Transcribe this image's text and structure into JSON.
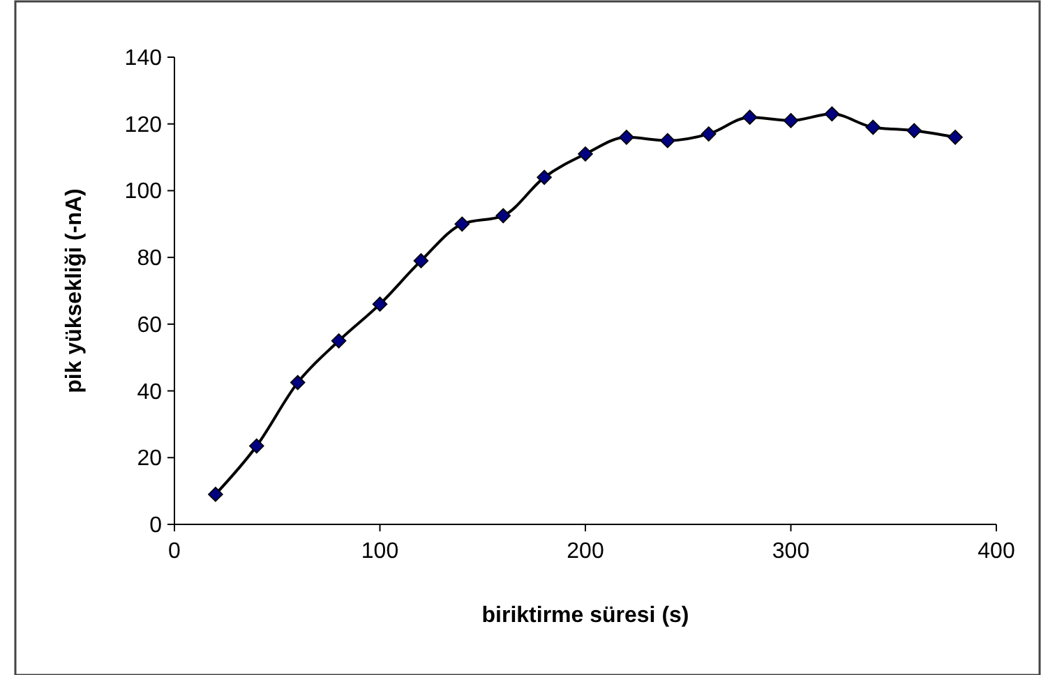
{
  "chart_data": {
    "type": "line",
    "xlabel": "biriktirme süresi (s)",
    "ylabel": "pik yüksekliği (-nA)",
    "x": [
      20,
      40,
      60,
      80,
      100,
      120,
      140,
      160,
      180,
      200,
      220,
      240,
      260,
      280,
      300,
      320,
      340,
      360,
      380
    ],
    "series": [
      {
        "color": "#000080",
        "values": [
          9,
          23.5,
          42.5,
          55,
          66,
          79,
          90,
          92.5,
          104,
          111,
          116,
          115,
          117,
          122,
          121,
          123,
          119,
          118,
          116
        ]
      }
    ],
    "xlim": [
      0,
      400
    ],
    "xticks": [
      0,
      100,
      200,
      300,
      400
    ],
    "ylim": [
      0,
      140
    ],
    "yticks": [
      0,
      20,
      40,
      60,
      80,
      100,
      120,
      140
    ],
    "grid": false,
    "marker": "diamond",
    "line_style": "solid"
  }
}
